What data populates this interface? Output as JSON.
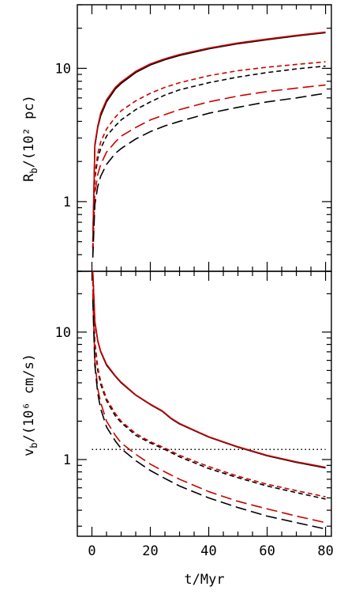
{
  "chart_data": [
    {
      "type": "line",
      "panel": "top",
      "ylabel": "R_b/(10² pc)",
      "ylabel_main": "R",
      "ylabel_sub": "b",
      "ylabel_rest": "/(10² pc)",
      "xlim": [
        -5,
        82
      ],
      "ylim": [
        0.3,
        30
      ],
      "yscale": "log",
      "yticks": [
        1,
        10
      ],
      "ytick_labels": [
        "1",
        "10"
      ],
      "series": [
        {
          "color": "#000000",
          "style": "solid",
          "x": [
            0.3,
            1,
            2,
            3,
            5,
            8,
            10,
            15,
            20,
            25,
            30,
            40,
            50,
            60,
            70,
            80
          ],
          "y": [
            0.5,
            2.6,
            3.6,
            4.4,
            5.6,
            7.0,
            7.7,
            9.3,
            10.6,
            11.6,
            12.5,
            14.0,
            15.3,
            16.4,
            17.5,
            18.5
          ]
        },
        {
          "color": "#cc0000",
          "style": "solid",
          "x": [
            0.3,
            1,
            2,
            3,
            5,
            8,
            10,
            15,
            20,
            25,
            30,
            40,
            50,
            60,
            70,
            80
          ],
          "y": [
            0.5,
            2.7,
            3.7,
            4.6,
            5.8,
            7.2,
            7.9,
            9.5,
            10.8,
            11.8,
            12.7,
            14.2,
            15.5,
            16.6,
            17.7,
            18.7
          ]
        },
        {
          "color": "#000000",
          "style": "short-dash",
          "x": [
            0.3,
            1,
            2,
            3,
            5,
            8,
            10,
            15,
            20,
            25,
            30,
            40,
            50,
            60,
            70,
            80
          ],
          "y": [
            0.45,
            1.5,
            2.1,
            2.5,
            3.1,
            3.7,
            4.1,
            4.9,
            5.6,
            6.3,
            6.9,
            7.8,
            8.6,
            9.3,
            9.9,
            10.4
          ]
        },
        {
          "color": "#cc0000",
          "style": "short-dash",
          "x": [
            0.3,
            1,
            2,
            3,
            5,
            8,
            10,
            15,
            20,
            25,
            30,
            40,
            50,
            60,
            70,
            80
          ],
          "y": [
            0.45,
            1.6,
            2.3,
            2.8,
            3.5,
            4.3,
            4.8,
            5.7,
            6.5,
            7.2,
            7.8,
            8.8,
            9.6,
            10.2,
            10.7,
            11.2
          ]
        },
        {
          "color": "#cc0000",
          "style": "long-dash",
          "x": [
            0.3,
            1,
            2,
            3,
            5,
            8,
            10,
            15,
            20,
            25,
            30,
            40,
            50,
            60,
            70,
            80
          ],
          "y": [
            0.4,
            1.15,
            1.6,
            1.9,
            2.35,
            2.8,
            3.1,
            3.6,
            4.1,
            4.5,
            4.9,
            5.6,
            6.2,
            6.7,
            7.1,
            7.5
          ]
        },
        {
          "color": "#000000",
          "style": "long-dash",
          "x": [
            0.3,
            1,
            2,
            3,
            5,
            8,
            10,
            15,
            20,
            25,
            30,
            40,
            50,
            60,
            70,
            80
          ],
          "y": [
            0.38,
            0.95,
            1.3,
            1.55,
            1.9,
            2.3,
            2.5,
            2.95,
            3.35,
            3.7,
            4.0,
            4.6,
            5.1,
            5.6,
            6.0,
            6.5
          ]
        }
      ]
    },
    {
      "type": "line",
      "panel": "bottom",
      "xlabel": "t/Myr",
      "ylabel": "v_b/(10⁶ cm/s)",
      "ylabel_main": "v",
      "ylabel_sub": "b",
      "ylabel_rest": "/(10⁶ cm/s)",
      "xlim": [
        -5,
        82
      ],
      "ylim": [
        0.25,
        30
      ],
      "yscale": "log",
      "xticks": [
        0,
        20,
        40,
        60,
        80
      ],
      "xtick_labels": [
        "0",
        "20",
        "40",
        "60",
        "80"
      ],
      "yticks": [
        1,
        10
      ],
      "ytick_labels": [
        "1",
        "10"
      ],
      "series": [
        {
          "color": "#000000",
          "style": "dotted",
          "x": [
            0,
            80
          ],
          "y": [
            1.2,
            1.2
          ]
        },
        {
          "color": "#000000",
          "style": "solid",
          "x": [
            0.3,
            1,
            2,
            3,
            5,
            8,
            10,
            15,
            20,
            24,
            25,
            27,
            30,
            40,
            50,
            60,
            70,
            80
          ],
          "y": [
            30,
            12,
            8.5,
            7.0,
            5.5,
            4.5,
            4.0,
            3.2,
            2.7,
            2.4,
            2.3,
            2.1,
            1.9,
            1.5,
            1.25,
            1.07,
            0.95,
            0.86
          ]
        },
        {
          "color": "#cc0000",
          "style": "solid",
          "x": [
            0.3,
            1,
            2,
            3,
            5,
            8,
            10,
            15,
            20,
            24,
            25,
            27,
            30,
            40,
            50,
            60,
            70,
            80
          ],
          "y": [
            30,
            12.2,
            8.6,
            7.1,
            5.6,
            4.55,
            4.05,
            3.22,
            2.72,
            2.42,
            2.32,
            2.12,
            1.92,
            1.51,
            1.26,
            1.08,
            0.96,
            0.87
          ]
        },
        {
          "color": "#000000",
          "style": "short-dash",
          "x": [
            0.3,
            1,
            2,
            3,
            5,
            8,
            10,
            15,
            20,
            25,
            30,
            40,
            50,
            60,
            70,
            80
          ],
          "y": [
            25,
            8.0,
            5.0,
            3.9,
            2.9,
            2.2,
            1.95,
            1.55,
            1.35,
            1.2,
            1.05,
            0.85,
            0.72,
            0.62,
            0.55,
            0.49
          ]
        },
        {
          "color": "#cc0000",
          "style": "short-dash",
          "x": [
            0.3,
            1,
            2,
            3,
            5,
            8,
            10,
            15,
            20,
            25,
            30,
            40,
            50,
            60,
            70,
            80
          ],
          "y": [
            25,
            8.5,
            5.3,
            4.1,
            3.0,
            2.3,
            2.0,
            1.6,
            1.38,
            1.23,
            1.08,
            0.88,
            0.74,
            0.64,
            0.57,
            0.51
          ]
        },
        {
          "color": "#cc0000",
          "style": "long-dash",
          "x": [
            0.3,
            1,
            2,
            3,
            5,
            8,
            10,
            15,
            20,
            25,
            30,
            40,
            50,
            60,
            70,
            80
          ],
          "y": [
            20,
            6.0,
            3.6,
            2.8,
            2.0,
            1.55,
            1.35,
            1.1,
            0.92,
            0.8,
            0.7,
            0.56,
            0.47,
            0.41,
            0.36,
            0.32
          ]
        },
        {
          "color": "#000000",
          "style": "long-dash",
          "x": [
            0.3,
            1,
            2,
            3,
            5,
            8,
            10,
            15,
            20,
            25,
            30,
            40,
            50,
            60,
            70,
            80
          ],
          "y": [
            18,
            5.5,
            3.3,
            2.5,
            1.8,
            1.4,
            1.22,
            0.98,
            0.82,
            0.71,
            0.62,
            0.5,
            0.42,
            0.36,
            0.32,
            0.285
          ]
        }
      ]
    }
  ]
}
